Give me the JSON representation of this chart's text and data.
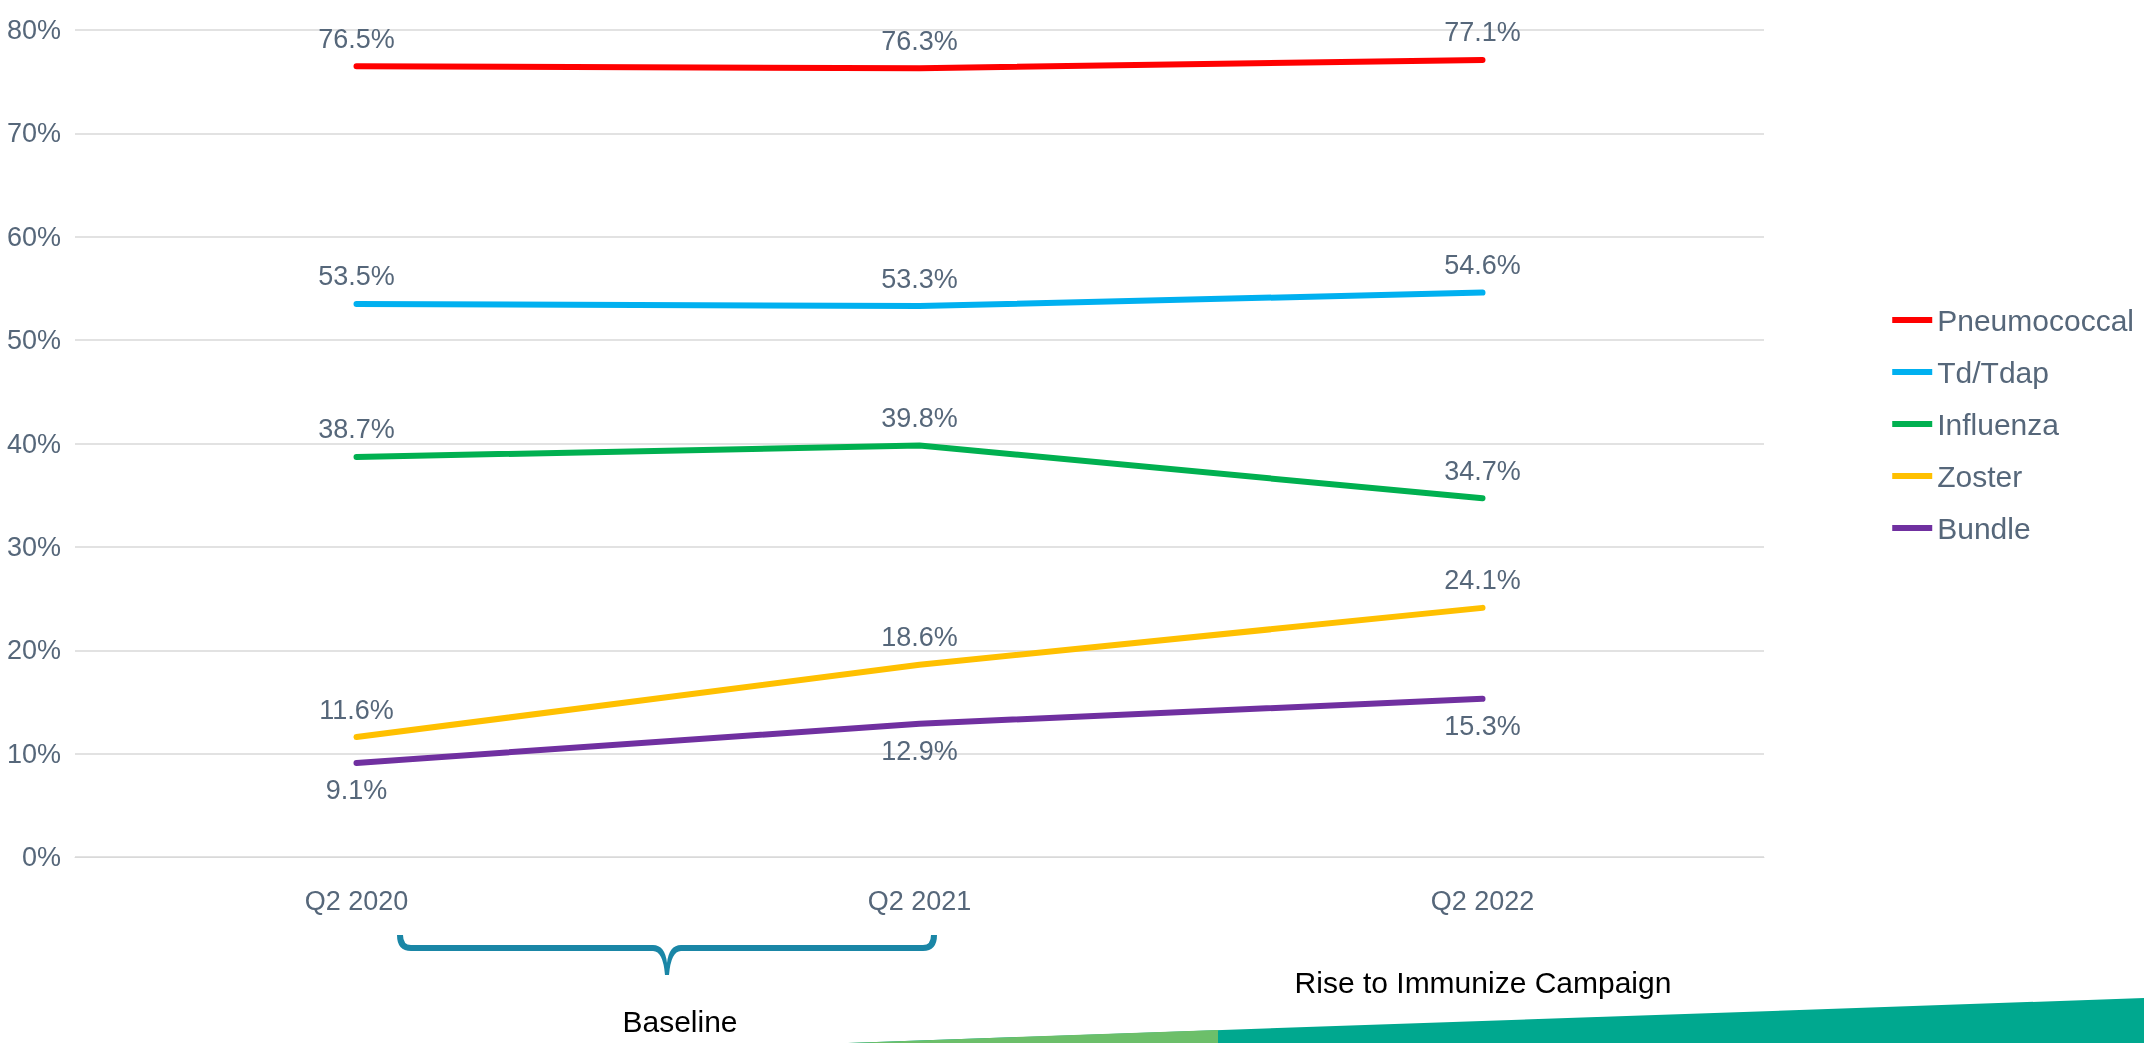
{
  "chart_data": {
    "type": "line",
    "categories": [
      "Q2 2020",
      "Q2 2021",
      "Q2 2022"
    ],
    "series": [
      {
        "name": "Pneumococcal",
        "color": "#ff0000",
        "values": [
          76.5,
          76.3,
          77.1
        ],
        "value_labels": [
          "76.5%",
          "76.3%",
          "77.1%"
        ]
      },
      {
        "name": "Td/Tdap",
        "color": "#00b0f0",
        "values": [
          53.5,
          53.3,
          54.6
        ],
        "value_labels": [
          "53.5%",
          "53.3%",
          "54.6%"
        ]
      },
      {
        "name": "Influenza",
        "color": "#00b050",
        "values": [
          38.7,
          39.8,
          34.7
        ],
        "value_labels": [
          "38.7%",
          "39.8%",
          "34.7%"
        ]
      },
      {
        "name": "Zoster",
        "color": "#ffc000",
        "values": [
          11.6,
          18.6,
          24.1
        ],
        "value_labels": [
          "11.6%",
          "18.6%",
          "24.1%"
        ]
      },
      {
        "name": "Bundle",
        "color": "#7030a0",
        "values": [
          9.1,
          12.9,
          15.3
        ],
        "value_labels": [
          "9.1%",
          "12.9%",
          "15.3%"
        ]
      }
    ],
    "ylim": [
      0,
      80
    ],
    "yticks": [
      {
        "value": 0,
        "label": "0%"
      },
      {
        "value": 10,
        "label": "10%"
      },
      {
        "value": 20,
        "label": "20%"
      },
      {
        "value": 30,
        "label": "30%"
      },
      {
        "value": 40,
        "label": "40%"
      },
      {
        "value": 50,
        "label": "50%"
      },
      {
        "value": 60,
        "label": "60%"
      },
      {
        "value": 70,
        "label": "70%"
      },
      {
        "value": 80,
        "label": "80%"
      }
    ],
    "grid": "y",
    "legend": "right",
    "marker": "none",
    "line_style": "solid",
    "annotations": [
      "Baseline",
      "Rise to Immunize Campaign"
    ]
  }
}
